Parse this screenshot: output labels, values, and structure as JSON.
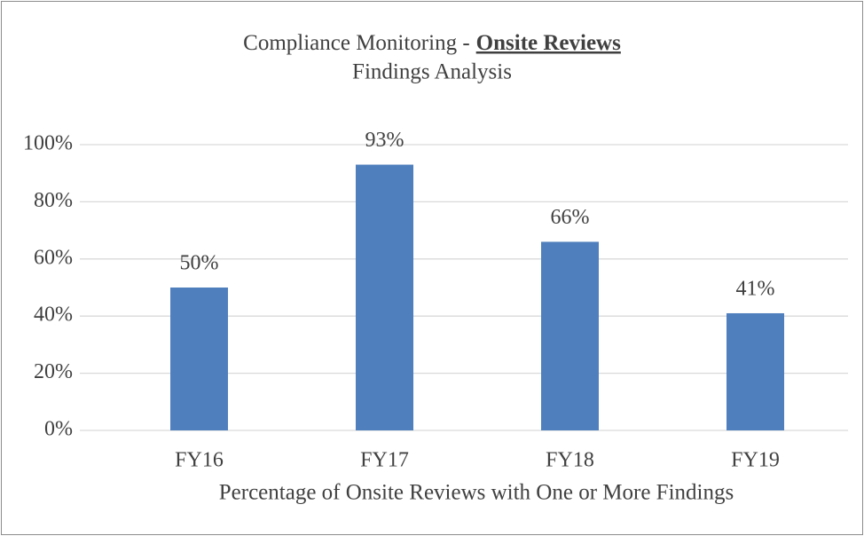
{
  "chart_data": {
    "type": "bar",
    "title": "Compliance Monitoring -",
    "title_emphasis": "Onsite Reviews",
    "subtitle": "Findings Analysis",
    "x_label": "Percentage of Onsite Reviews with One or More Findings",
    "categories": [
      "FY16",
      "FY17",
      "FY18",
      "FY19"
    ],
    "values": [
      50,
      93,
      66,
      41
    ],
    "value_labels": [
      "50%",
      "93%",
      "66%",
      "41%"
    ],
    "color": "#4f80bd",
    "ylim": [
      0,
      100
    ],
    "yticks": [
      {
        "value": 0,
        "label": "0%"
      },
      {
        "value": 20,
        "label": "20%"
      },
      {
        "value": 40,
        "label": "40%"
      },
      {
        "value": 60,
        "label": "60%"
      },
      {
        "value": 80,
        "label": "80%"
      },
      {
        "value": 100,
        "label": "100%"
      }
    ],
    "grid": true
  }
}
